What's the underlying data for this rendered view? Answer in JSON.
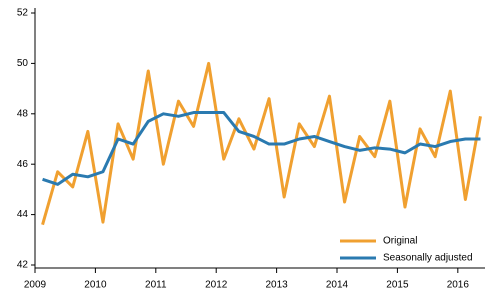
{
  "chart_data": {
    "type": "line",
    "x": [
      2009.125,
      2009.375,
      2009.625,
      2009.875,
      2010.125,
      2010.375,
      2010.625,
      2010.875,
      2011.125,
      2011.375,
      2011.625,
      2011.875,
      2012.125,
      2012.375,
      2012.625,
      2012.875,
      2013.125,
      2013.375,
      2013.625,
      2013.875,
      2014.125,
      2014.375,
      2014.625,
      2014.875,
      2015.125,
      2015.375,
      2015.625,
      2015.875,
      2016.125,
      2016.375
    ],
    "series": [
      {
        "name": "Original",
        "color": "#f0a030",
        "values": [
          43.6,
          45.7,
          45.1,
          47.3,
          43.7,
          47.6,
          46.2,
          49.7,
          46.0,
          48.5,
          47.5,
          50.0,
          46.2,
          47.8,
          46.6,
          48.6,
          44.7,
          47.6,
          46.7,
          48.7,
          44.5,
          47.1,
          46.3,
          48.5,
          44.3,
          47.4,
          46.3,
          48.9,
          44.6,
          47.9
        ]
      },
      {
        "name": "Seasonally adjusted",
        "color": "#2a7ab0",
        "values": [
          45.4,
          45.2,
          45.6,
          45.5,
          45.7,
          47.0,
          46.8,
          47.7,
          48.0,
          47.9,
          48.05,
          48.05,
          48.05,
          47.3,
          47.1,
          46.8,
          46.8,
          47.0,
          47.1,
          46.9,
          46.7,
          46.55,
          46.65,
          46.6,
          46.45,
          46.8,
          46.7,
          46.9,
          47.0,
          47.0
        ]
      }
    ],
    "xlim": [
      2009,
      2016.45
    ],
    "xticks": [
      2009,
      2010,
      2011,
      2012,
      2013,
      2014,
      2015,
      2016
    ],
    "ylim": [
      42,
      52
    ],
    "yticks": [
      42,
      44,
      46,
      48,
      50,
      52
    ],
    "legend": "lower right"
  }
}
